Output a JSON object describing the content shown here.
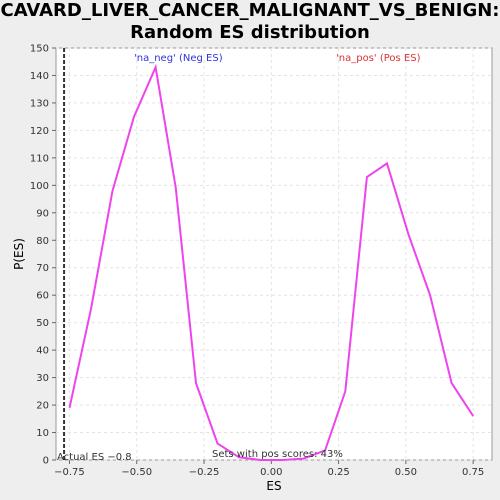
{
  "chart_data": {
    "type": "line",
    "title": "CAVARD_LIVER_CANCER_MALIGNANT_VS_BENIGN:",
    "subtitle": "Random ES distribution",
    "xlabel": "ES",
    "ylabel": "P(ES)",
    "xlim": [
      -0.8,
      0.82
    ],
    "ylim": [
      0,
      150
    ],
    "xticks": [
      -0.75,
      -0.5,
      -0.25,
      0.0,
      0.25,
      0.5,
      0.75
    ],
    "xtick_labels": [
      "−0.75",
      "−0.50",
      "−0.25",
      "0.00",
      "0.25",
      "0.50",
      "0.75"
    ],
    "yticks": [
      0,
      10,
      20,
      30,
      40,
      50,
      60,
      70,
      80,
      90,
      100,
      110,
      120,
      130,
      140,
      150
    ],
    "grid": true,
    "line_color": "#ee44ee",
    "series": [
      {
        "x": [
          -0.75,
          -0.67,
          -0.59,
          -0.51,
          -0.43,
          -0.355,
          -0.28,
          -0.2,
          -0.12,
          -0.04,
          0.04,
          0.12,
          0.2,
          0.275,
          0.355,
          0.43,
          0.51,
          0.59,
          0.67,
          0.75
        ],
        "values": [
          19,
          55,
          98,
          125,
          143,
          99,
          28,
          6,
          1,
          0,
          0,
          0.5,
          3.5,
          25,
          103,
          108,
          82,
          60,
          28,
          16
        ]
      }
    ],
    "annotations": {
      "neg_label": "'na_neg' (Neg ES)",
      "neg_color": "#3333dd",
      "pos_label": "'na_pos' (Pos ES)",
      "pos_color": "#dd3333",
      "pos_scores_text": "Sets with pos scores: 43%",
      "actual_es_text": "Actual ES −0.8",
      "actual_es_value": -0.77
    }
  }
}
